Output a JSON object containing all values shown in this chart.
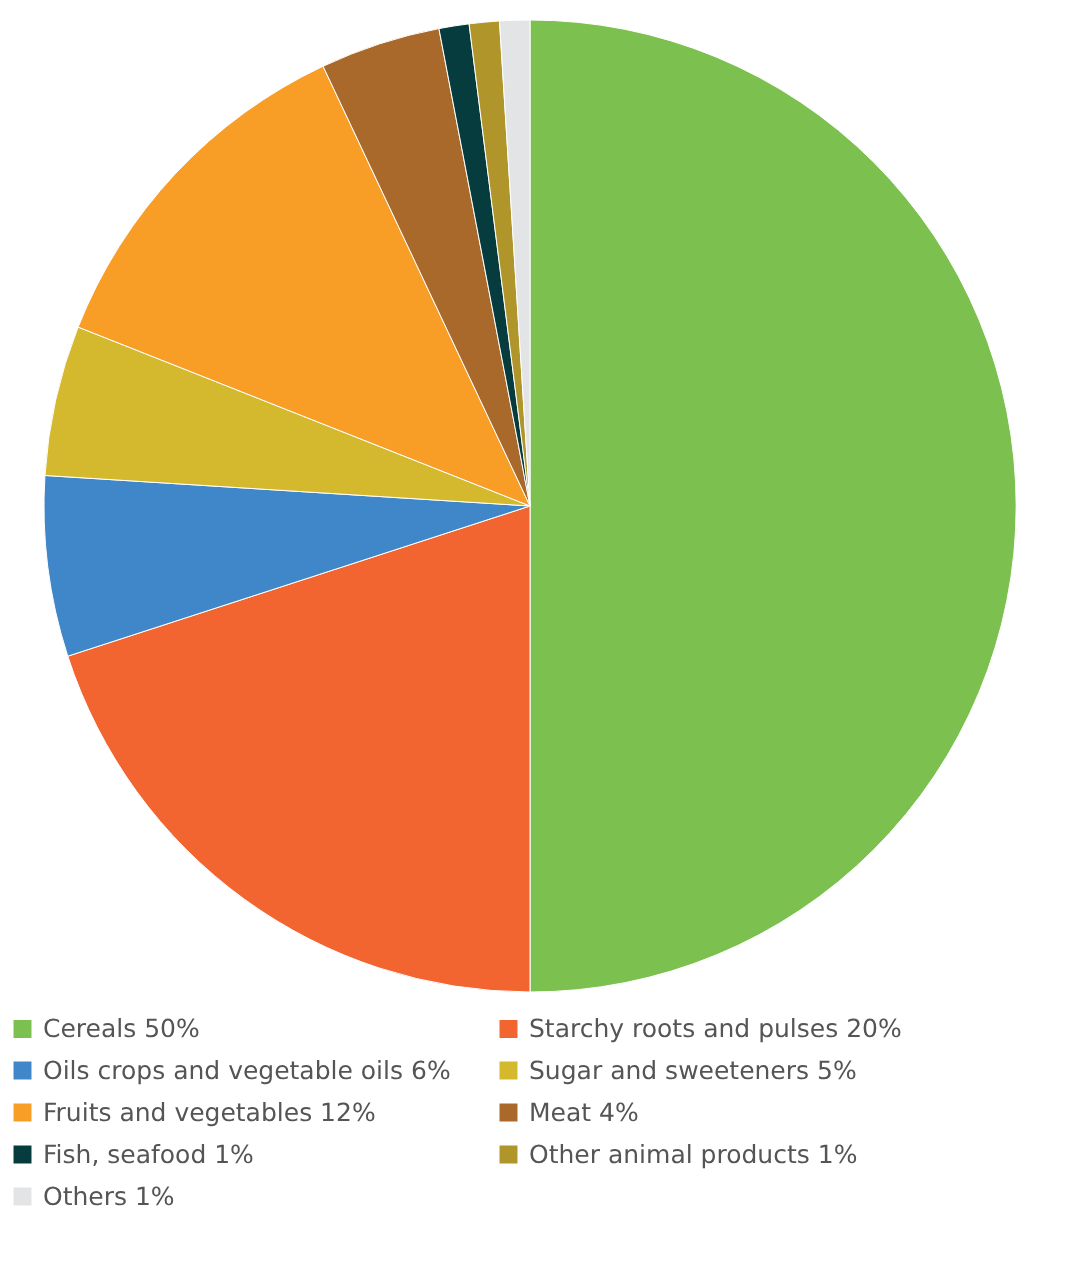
{
  "chart_data": {
    "type": "pie",
    "categories": [
      "Cereals 50%",
      "Starchy roots and pulses 20%",
      "Oils crops and vegetable oils 6%",
      "Sugar and sweeteners 5%",
      "Fruits and vegetables 12%",
      "Meat 4%",
      "Fish, seafood 1%",
      "Other animal products 1%",
      "Others 1%"
    ],
    "values": [
      50,
      20,
      6,
      5,
      12,
      4,
      1,
      1,
      1
    ],
    "colors": [
      "#7cc04f",
      "#f26430",
      "#3f87c8",
      "#d4b92e",
      "#f89d26",
      "#a8692a",
      "#063c3e",
      "#b0952a",
      "#e3e4e6"
    ],
    "legend": "bottom"
  }
}
